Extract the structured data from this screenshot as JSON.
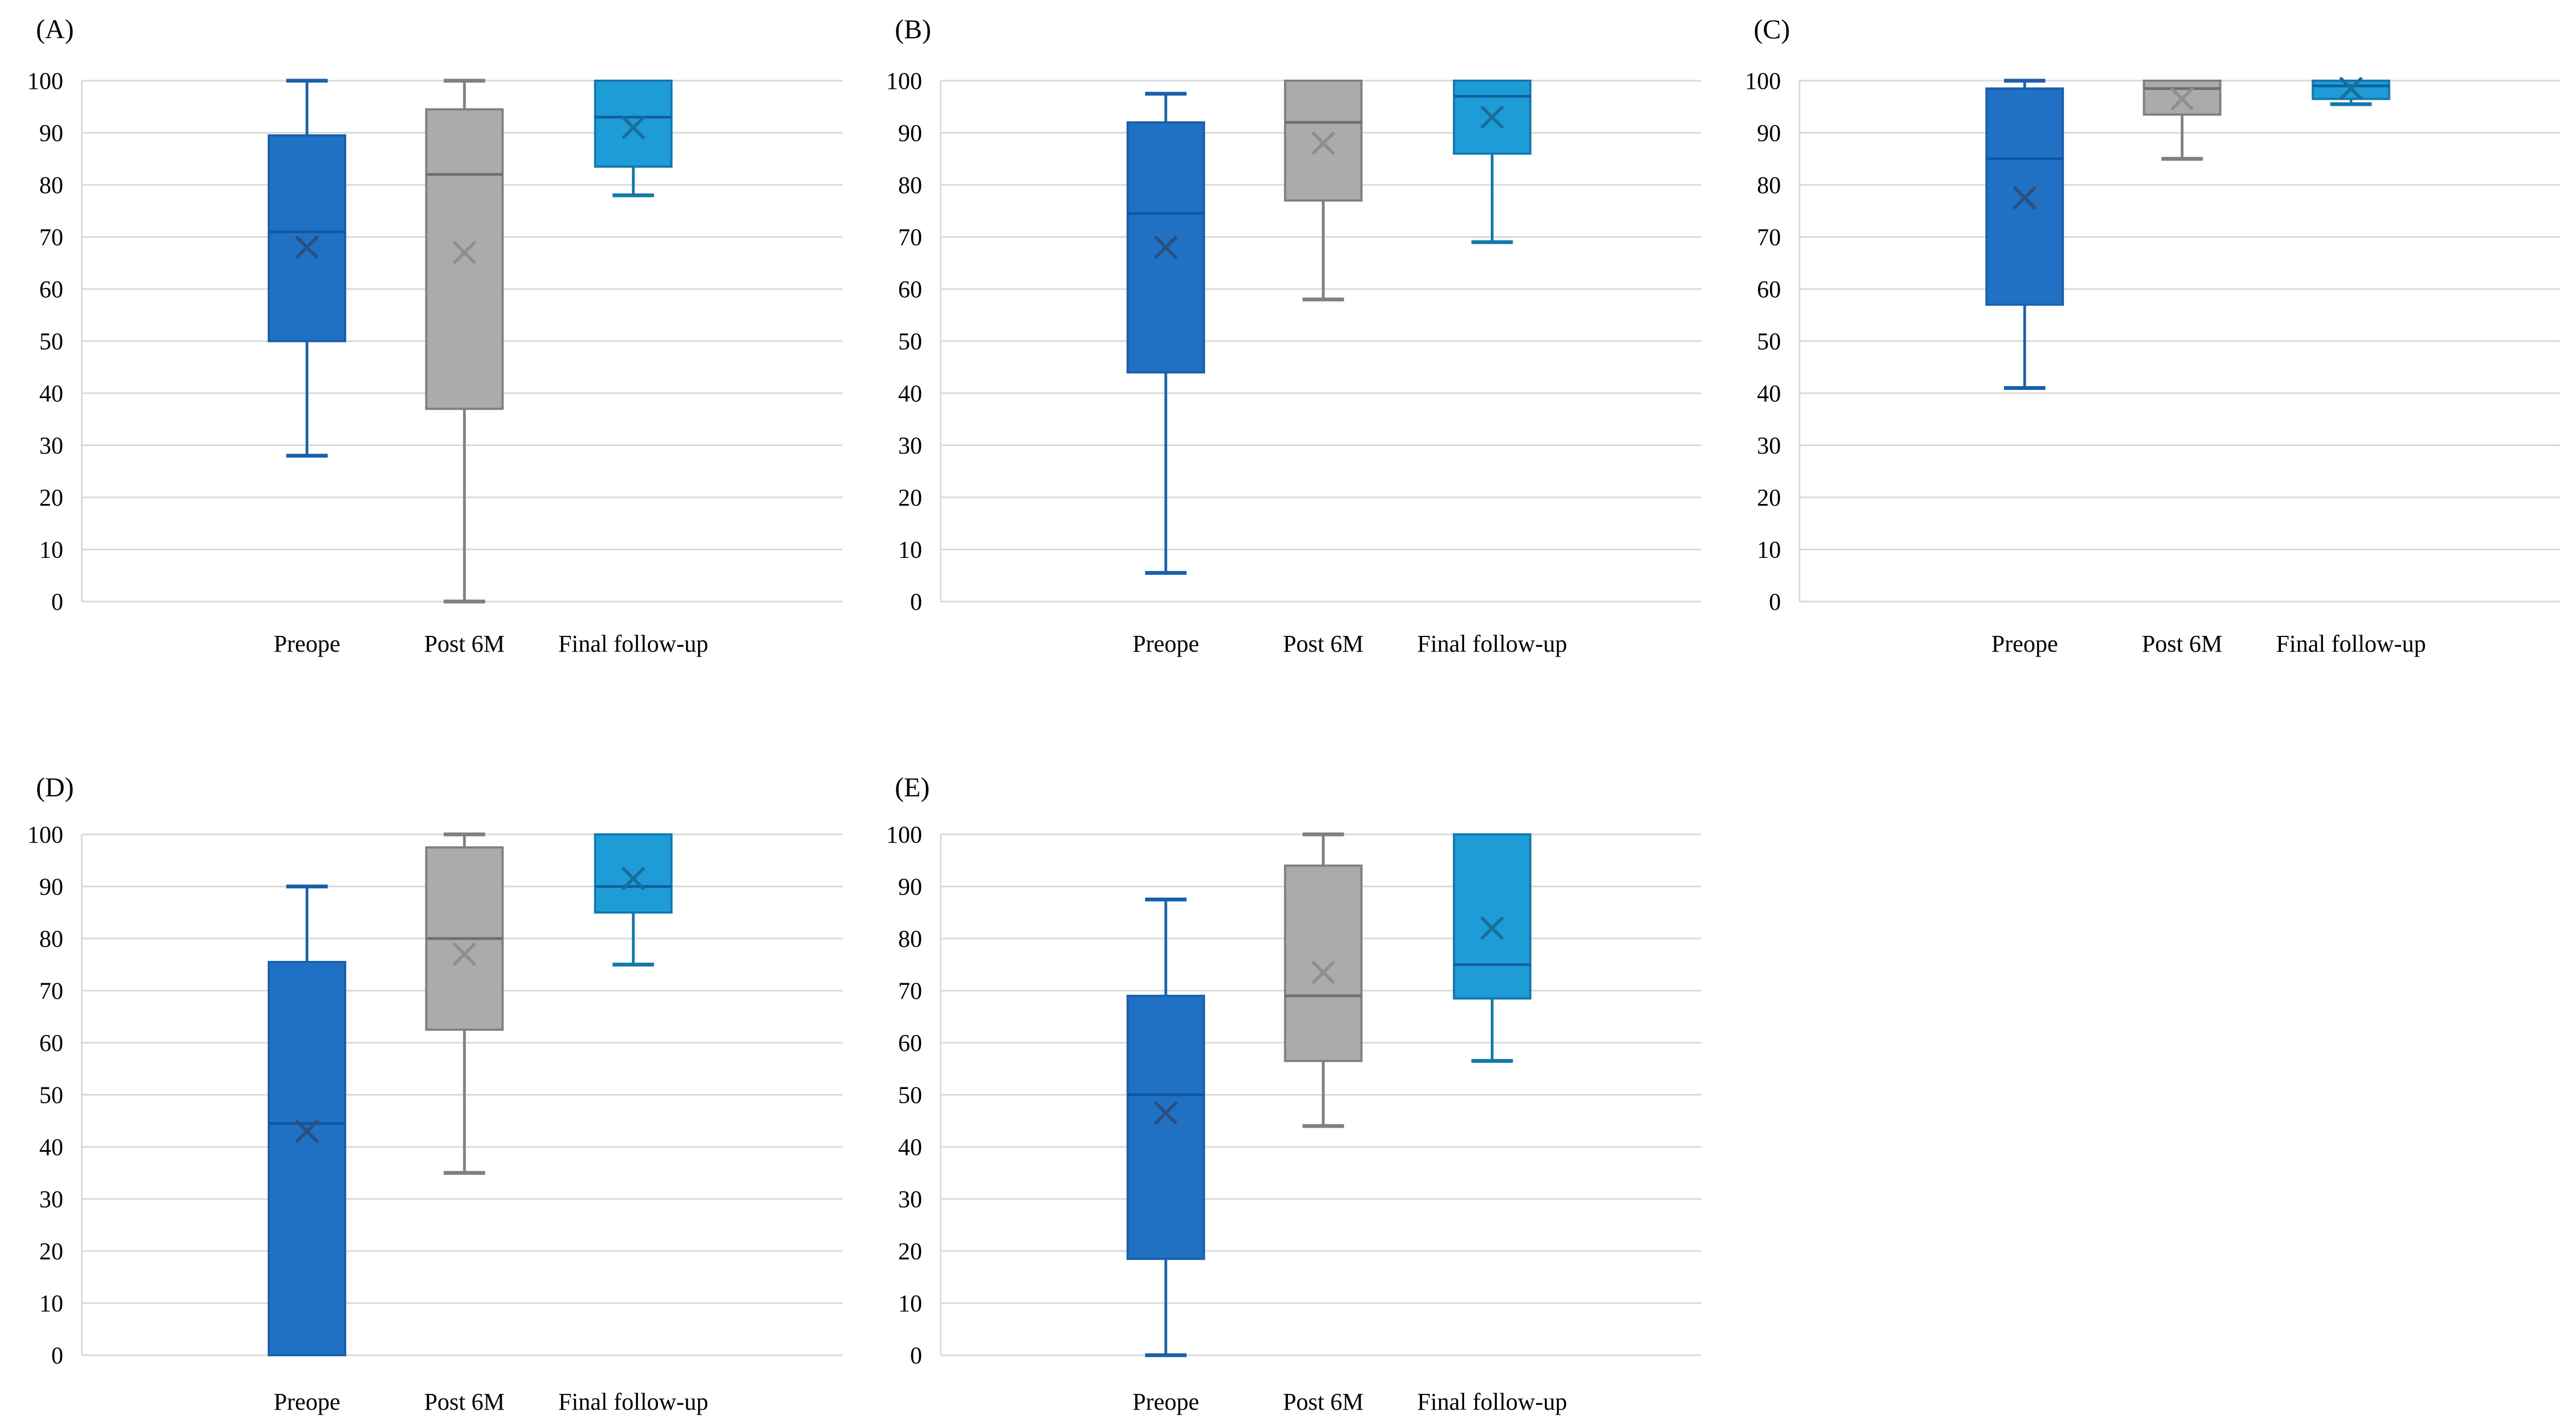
{
  "page": {
    "background": "#ffffff",
    "description": "Five box-and-whisker plots (A-E) comparing scores at Preope, Post 6M and Final follow-up, y-axis 0-100"
  },
  "styles": {
    "gridline_color": "#d9d9d9",
    "axis_line_color": "#d9d9d9",
    "text_color": "#000000",
    "series_colors": {
      "preope": {
        "fill": "#2070c4",
        "stroke": "#1a5fa9",
        "median": "#0f57a2",
        "mean": "#2b4f7e",
        "whisker": "#1a5fa9"
      },
      "post6m": {
        "fill": "#ababab",
        "stroke": "#7f7f7f",
        "median": "#6e6e6e",
        "mean": "#8f8f8f",
        "whisker": "#7f7f7f"
      },
      "final": {
        "fill": "#1e9cd8",
        "stroke": "#1478ac",
        "median": "#10619b",
        "mean": "#1a6e99",
        "whisker": "#1478ac"
      }
    }
  },
  "axis": {
    "ylim": [
      0,
      100
    ],
    "yticks": [
      "0",
      "10",
      "20",
      "30",
      "40",
      "50",
      "60",
      "70",
      "80",
      "90",
      "100"
    ],
    "grid": "horizontal"
  },
  "chart_data": [
    {
      "type": "box",
      "panel_label": "(A)",
      "categories": [
        "Preope",
        "Post 6M",
        "Final follow-up"
      ],
      "ylim": [
        0,
        100
      ],
      "series": [
        {
          "name": "Preope",
          "color": "preope",
          "min": 28,
          "q1": 50,
          "median": 71,
          "q3": 89.5,
          "max": 100,
          "mean": 68
        },
        {
          "name": "Post 6M",
          "color": "post6m",
          "min": 0,
          "q1": 37,
          "median": 82,
          "q3": 94.5,
          "max": 100,
          "mean": 67
        },
        {
          "name": "Final follow-up",
          "color": "final",
          "min": 78,
          "q1": 83.5,
          "median": 93,
          "q3": 100,
          "max": 100,
          "mean": 91
        }
      ]
    },
    {
      "type": "box",
      "panel_label": "(B)",
      "categories": [
        "Preope",
        "Post 6M",
        "Final follow-up"
      ],
      "ylim": [
        0,
        100
      ],
      "series": [
        {
          "name": "Preope",
          "color": "preope",
          "min": 5.5,
          "q1": 44,
          "median": 74.5,
          "q3": 92,
          "max": 97.5,
          "mean": 68
        },
        {
          "name": "Post 6M",
          "color": "post6m",
          "min": 58,
          "q1": 77,
          "median": 92,
          "q3": 100,
          "max": 100,
          "mean": 88
        },
        {
          "name": "Final follow-up",
          "color": "final",
          "min": 69,
          "q1": 86,
          "median": 97,
          "q3": 100,
          "max": 100,
          "mean": 93
        }
      ]
    },
    {
      "type": "box",
      "panel_label": "(C)",
      "categories": [
        "Preope",
        "Post 6M",
        "Final follow-up"
      ],
      "ylim": [
        0,
        100
      ],
      "series": [
        {
          "name": "Preope",
          "color": "preope",
          "min": 41,
          "q1": 57,
          "median": 85,
          "q3": 98.5,
          "max": 100,
          "mean": 77.5
        },
        {
          "name": "Post 6M",
          "color": "post6m",
          "min": 85,
          "q1": 93.5,
          "median": 98.5,
          "q3": 100,
          "max": 100,
          "mean": 96.5
        },
        {
          "name": "Final follow-up",
          "color": "final",
          "min": 95.5,
          "q1": 96.5,
          "median": 99,
          "q3": 100,
          "max": 100,
          "mean": 98.5
        }
      ]
    },
    {
      "type": "box",
      "panel_label": "(D)",
      "categories": [
        "Preope",
        "Post 6M",
        "Final follow-up"
      ],
      "ylim": [
        0,
        100
      ],
      "series": [
        {
          "name": "Preope",
          "color": "preope",
          "min": 0,
          "q1": 0,
          "median": 44.5,
          "q3": 75.5,
          "max": 90,
          "mean": 43
        },
        {
          "name": "Post 6M",
          "color": "post6m",
          "min": 35,
          "q1": 62.5,
          "median": 80,
          "q3": 97.5,
          "max": 100,
          "mean": 77
        },
        {
          "name": "Final follow-up",
          "color": "final",
          "min": 75,
          "q1": 85,
          "median": 90,
          "q3": 100,
          "max": 100,
          "mean": 91.5
        }
      ]
    },
    {
      "type": "box",
      "panel_label": "(E)",
      "categories": [
        "Preope",
        "Post 6M",
        "Final follow-up"
      ],
      "ylim": [
        0,
        100
      ],
      "series": [
        {
          "name": "Preope",
          "color": "preope",
          "min": 0,
          "q1": 18.5,
          "median": 50,
          "q3": 69,
          "max": 87.5,
          "mean": 46.5
        },
        {
          "name": "Post 6M",
          "color": "post6m",
          "min": 44,
          "q1": 56.5,
          "median": 69,
          "q3": 94,
          "max": 100,
          "mean": 73.5
        },
        {
          "name": "Final follow-up",
          "color": "final",
          "min": 56.5,
          "q1": 68.5,
          "median": 75,
          "q3": 100,
          "max": 100,
          "mean": 82
        }
      ]
    }
  ]
}
